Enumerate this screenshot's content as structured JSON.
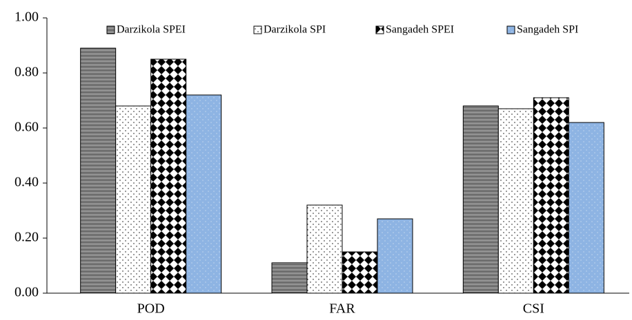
{
  "chart_data": {
    "type": "bar",
    "categories": [
      "POD",
      "FAR",
      "CSI"
    ],
    "series": [
      {
        "name": "Darzikola SPEI",
        "color": "#ffffff",
        "values": [
          0.89,
          0.11,
          0.68
        ]
      },
      {
        "name": "Darzikola SPI",
        "color": "#ffffff",
        "values": [
          0.68,
          0.32,
          0.67
        ]
      },
      {
        "name": "Sangadeh SPEI",
        "color": "#ffffff",
        "values": [
          0.85,
          0.15,
          0.71
        ]
      },
      {
        "name": "Sangadeh SPI",
        "color": "#8eb4e3",
        "values": [
          0.72,
          0.27,
          0.62
        ]
      }
    ],
    "ylim": [
      0,
      1
    ],
    "yticks": [
      {
        "value": 0,
        "label": "0.00"
      },
      {
        "value": 0.2,
        "label": "0.20"
      },
      {
        "value": 0.4,
        "label": "0.40"
      },
      {
        "value": 0.6,
        "label": "0.60"
      },
      {
        "value": 0.8,
        "label": "0.80"
      },
      {
        "value": 1,
        "label": "1.00"
      }
    ],
    "legend": "top"
  }
}
